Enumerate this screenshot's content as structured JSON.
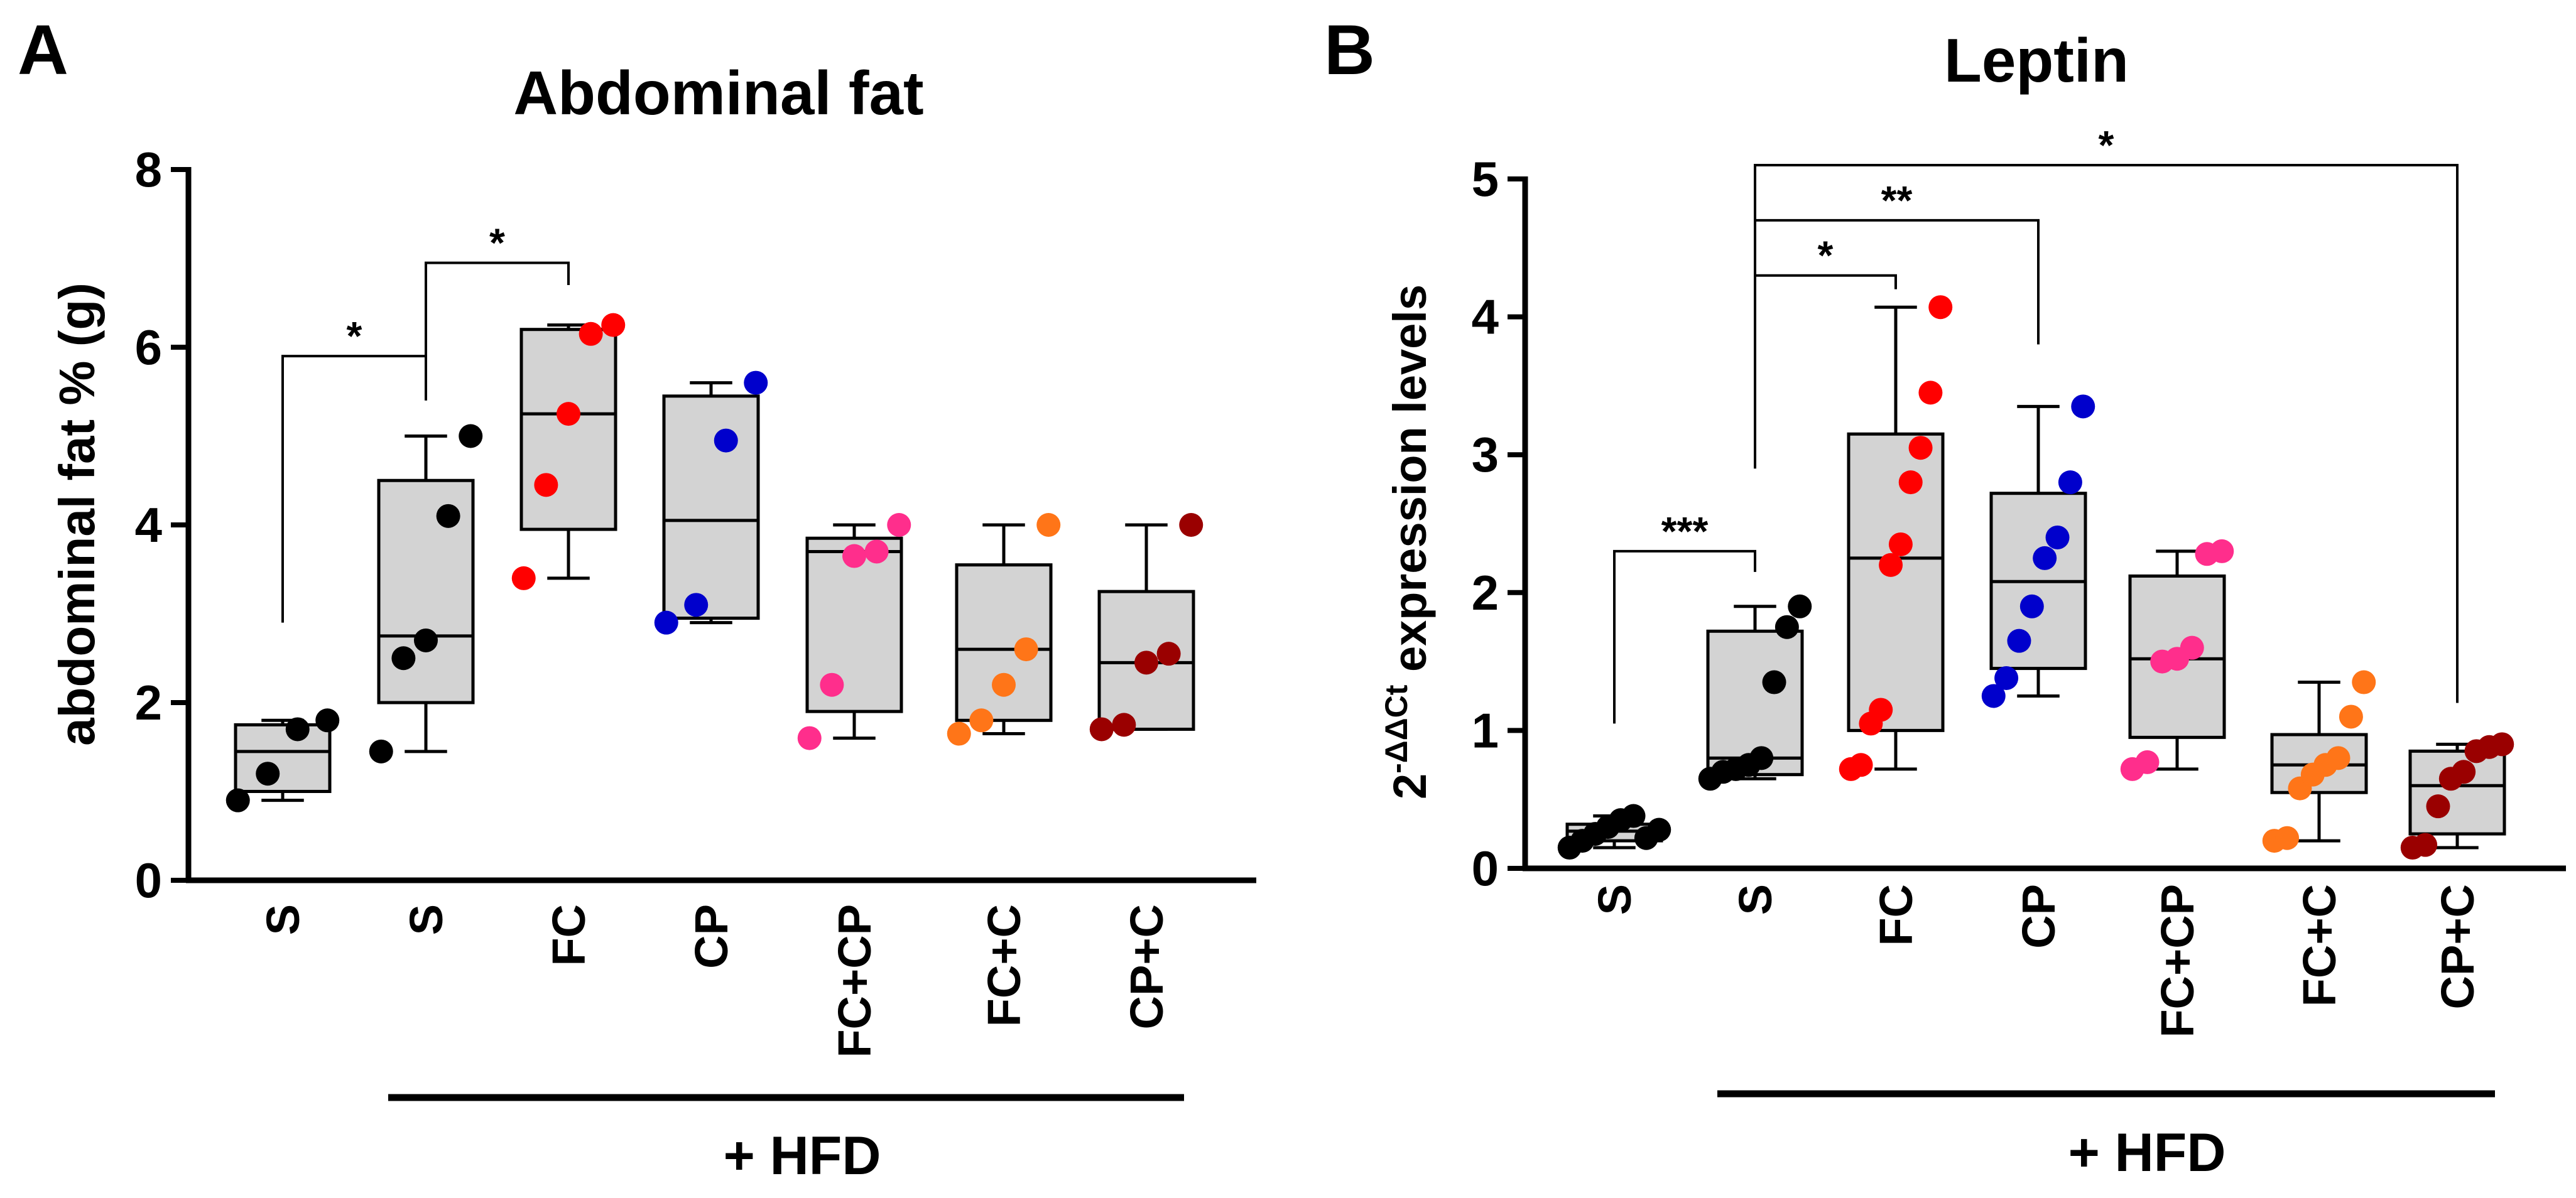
{
  "panels": [
    {
      "letter": "A",
      "group_label": "+ HFD"
    },
    {
      "letter": "B",
      "group_label": "+ HFD"
    }
  ],
  "colors": {
    "black": "#000000",
    "red": "#ff0000",
    "blue": "#0000cc",
    "pink": "#ff2e8c",
    "orange": "#ff7518",
    "darkred": "#9a0000",
    "box_fill": "#d3d3d3"
  },
  "chart_data": [
    {
      "type": "box",
      "title": "Abdominal fat",
      "ylabel": "abdominal fat % (g)",
      "xlabel": "",
      "ylim": [
        0,
        8
      ],
      "yticks": [
        0,
        2,
        4,
        6,
        8
      ],
      "categories": [
        "S",
        "S",
        "FC",
        "CP",
        "FC+CP",
        "FC+C",
        "CP+C"
      ],
      "series": [
        {
          "name": "S",
          "color": "black",
          "points": [
            0.9,
            1.2,
            1.7,
            1.8
          ],
          "q1": 1.0,
          "median": 1.45,
          "q3": 1.75,
          "min": 0.9,
          "max": 1.8
        },
        {
          "name": "S",
          "color": "black",
          "points": [
            1.45,
            2.5,
            2.7,
            4.1,
            5.0
          ],
          "q1": 2.0,
          "median": 2.75,
          "q3": 4.5,
          "min": 1.45,
          "max": 5.0
        },
        {
          "name": "FC",
          "color": "red",
          "points": [
            3.4,
            4.45,
            5.25,
            6.15,
            6.25
          ],
          "q1": 3.95,
          "median": 5.25,
          "q3": 6.2,
          "min": 3.4,
          "max": 6.25
        },
        {
          "name": "CP",
          "color": "blue",
          "points": [
            2.9,
            3.1,
            4.95,
            5.6
          ],
          "q1": 2.95,
          "median": 4.05,
          "q3": 5.45,
          "min": 2.9,
          "max": 5.6
        },
        {
          "name": "FC+CP",
          "color": "pink",
          "points": [
            1.6,
            2.2,
            3.65,
            3.7,
            4.0
          ],
          "q1": 1.9,
          "median": 3.7,
          "q3": 3.85,
          "min": 1.6,
          "max": 4.0
        },
        {
          "name": "FC+C",
          "color": "orange",
          "points": [
            1.65,
            1.8,
            2.2,
            2.6,
            4.0
          ],
          "q1": 1.8,
          "median": 2.6,
          "q3": 3.55,
          "min": 1.65,
          "max": 4.0
        },
        {
          "name": "CP+C",
          "color": "darkred",
          "points": [
            1.7,
            1.75,
            2.45,
            2.55,
            4.0
          ],
          "q1": 1.7,
          "median": 2.45,
          "q3": 3.25,
          "min": 1.7,
          "max": 4.0
        }
      ],
      "significance": [
        {
          "from": 0,
          "to": 1,
          "label": "*",
          "y_from": 2.9,
          "y_bracket": 5.9,
          "y_to": 5.5
        },
        {
          "from": 1,
          "to": 2,
          "label": "*",
          "y_from": 5.4,
          "y_bracket": 6.95,
          "y_to": 6.7
        }
      ],
      "group_bracket": {
        "from": 1,
        "to": 6
      }
    },
    {
      "type": "box",
      "title": "Leptin",
      "ylabel_base": "2",
      "ylabel_sup": "-ΔΔCt",
      "ylabel_rest": " expression levels",
      "xlabel": "",
      "ylim": [
        0,
        5
      ],
      "yticks": [
        0,
        1,
        2,
        3,
        4,
        5
      ],
      "categories": [
        "S",
        "S",
        "FC",
        "CP",
        "FC+CP",
        "FC+C",
        "CP+C"
      ],
      "series": [
        {
          "name": "S",
          "color": "black",
          "points": [
            0.15,
            0.2,
            0.25,
            0.3,
            0.35,
            0.38,
            0.22,
            0.28
          ],
          "q1": 0.2,
          "median": 0.27,
          "q3": 0.32,
          "min": 0.15,
          "max": 0.38
        },
        {
          "name": "S",
          "color": "black",
          "points": [
            0.65,
            0.7,
            0.72,
            0.75,
            0.8,
            1.35,
            1.75,
            1.9
          ],
          "q1": 0.68,
          "median": 0.8,
          "q3": 1.72,
          "min": 0.65,
          "max": 1.9
        },
        {
          "name": "FC",
          "color": "red",
          "points": [
            0.72,
            0.75,
            1.05,
            1.15,
            2.2,
            2.35,
            2.8,
            3.05,
            3.45,
            4.07
          ],
          "q1": 1.0,
          "median": 2.25,
          "q3": 3.15,
          "min": 0.72,
          "max": 4.07
        },
        {
          "name": "CP",
          "color": "blue",
          "points": [
            1.25,
            1.38,
            1.65,
            1.9,
            2.25,
            2.4,
            2.8,
            3.35
          ],
          "q1": 1.45,
          "median": 2.08,
          "q3": 2.72,
          "min": 1.25,
          "max": 3.35
        },
        {
          "name": "FC+CP",
          "color": "pink",
          "points": [
            0.72,
            0.77,
            1.5,
            1.52,
            1.6,
            2.28,
            2.3
          ],
          "q1": 0.95,
          "median": 1.52,
          "q3": 2.12,
          "min": 0.72,
          "max": 2.3
        },
        {
          "name": "FC+C",
          "color": "orange",
          "points": [
            0.2,
            0.22,
            0.58,
            0.68,
            0.75,
            0.8,
            1.1,
            1.35
          ],
          "q1": 0.55,
          "median": 0.75,
          "q3": 0.97,
          "min": 0.2,
          "max": 1.35
        },
        {
          "name": "CP+C",
          "color": "darkred",
          "points": [
            0.15,
            0.17,
            0.45,
            0.65,
            0.7,
            0.85,
            0.88,
            0.9
          ],
          "q1": 0.25,
          "median": 0.6,
          "q3": 0.85,
          "min": 0.15,
          "max": 0.9
        },
        {
          "name": "",
          "color": "",
          "points": []
        }
      ],
      "significance": [
        {
          "from": 0,
          "to": 1,
          "label": "***",
          "y_from": 1.05,
          "y_bracket": 2.3,
          "y_to": 2.15
        },
        {
          "from": 1,
          "to": 2,
          "label": "*",
          "y_from": 2.9,
          "y_bracket": 4.3,
          "y_to": 4.2
        },
        {
          "from": 1,
          "to": 3,
          "label": "**",
          "y_from": 2.9,
          "y_bracket": 4.7,
          "y_to": 3.8
        },
        {
          "from": 1,
          "to": 6,
          "label": "*",
          "y_from": 2.9,
          "y_bracket": 5.1,
          "y_to": 1.2
        }
      ],
      "group_bracket": {
        "from": 1,
        "to": 6
      }
    }
  ]
}
